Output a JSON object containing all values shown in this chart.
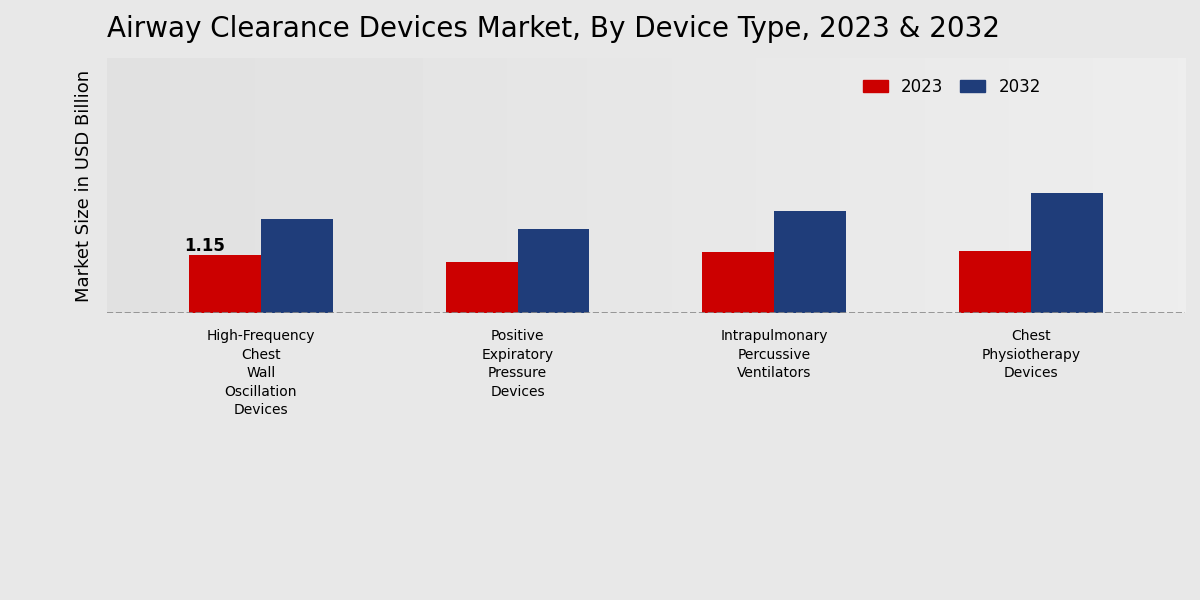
{
  "title": "Airway Clearance Devices Market, By Device Type, 2023 & 2032",
  "ylabel": "Market Size in USD Billion",
  "categories": [
    "High-Frequency\nChest\nWall\nOscillation\nDevices",
    "Positive\nExpiratory\nPressure\nDevices",
    "Intrapulmonary\nPercussive\nVentilators",
    "Chest\nPhysiotherapy\nDevices"
  ],
  "values_2023": [
    1.15,
    1.0,
    1.2,
    1.22
  ],
  "values_2032": [
    1.85,
    1.65,
    2.0,
    2.35
  ],
  "color_2023": "#cc0000",
  "color_2032": "#1f3d7a",
  "bar_width": 0.28,
  "annotation_value": "1.15",
  "annotation_bar_index": 0,
  "ylim": [
    0,
    5.0
  ],
  "legend_labels": [
    "2023",
    "2032"
  ],
  "title_fontsize": 20,
  "ylabel_fontsize": 13,
  "tick_fontsize": 10,
  "bg_color_top": "#d4d4d4",
  "bg_color_bottom": "#e8e8e8"
}
